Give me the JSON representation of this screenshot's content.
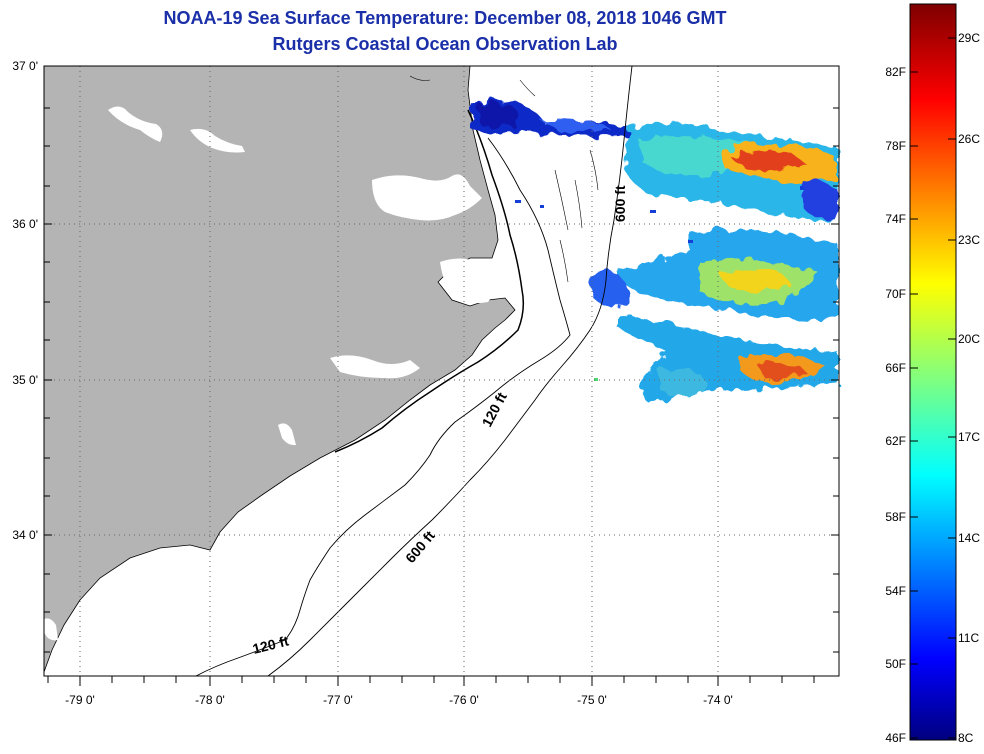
{
  "title": {
    "line1": "NOAA-19 Sea Surface Temperature:  December 08, 2018 1046 GMT",
    "line2": "Rutgers Coastal Ocean Observation Lab"
  },
  "map": {
    "lon_range": [
      -79.3,
      -73.25
    ],
    "lat_range": [
      33.15,
      37.0
    ],
    "lon_ticks": [
      {
        "value": -79,
        "label": "-79 0'"
      },
      {
        "value": -78,
        "label": "-78 0'"
      },
      {
        "value": -77,
        "label": "-77 0'"
      },
      {
        "value": -76,
        "label": "-76 0'"
      },
      {
        "value": -75,
        "label": "-75 0'"
      },
      {
        "value": -74,
        "label": "-74 0'"
      }
    ],
    "lat_ticks": [
      {
        "value": 37,
        "label": "37 0'"
      },
      {
        "value": 36,
        "label": "36 0'"
      },
      {
        "value": 35,
        "label": "35 0'"
      },
      {
        "value": 34,
        "label": "34 0'"
      }
    ],
    "contour_labels": [
      "600 ft",
      "120 ft",
      "600 ft",
      "120 ft"
    ],
    "land_color": "#b4b4b4"
  },
  "colorbar": {
    "fahrenheit_labels": [
      "82F",
      "78F",
      "74F",
      "70F",
      "66F",
      "62F",
      "58F",
      "54F",
      "50F",
      "46F"
    ],
    "celsius_labels": [
      "29C",
      "26C",
      "23C",
      "20C",
      "17C",
      "14C",
      "11C",
      "8C"
    ],
    "colormap": "jet"
  }
}
